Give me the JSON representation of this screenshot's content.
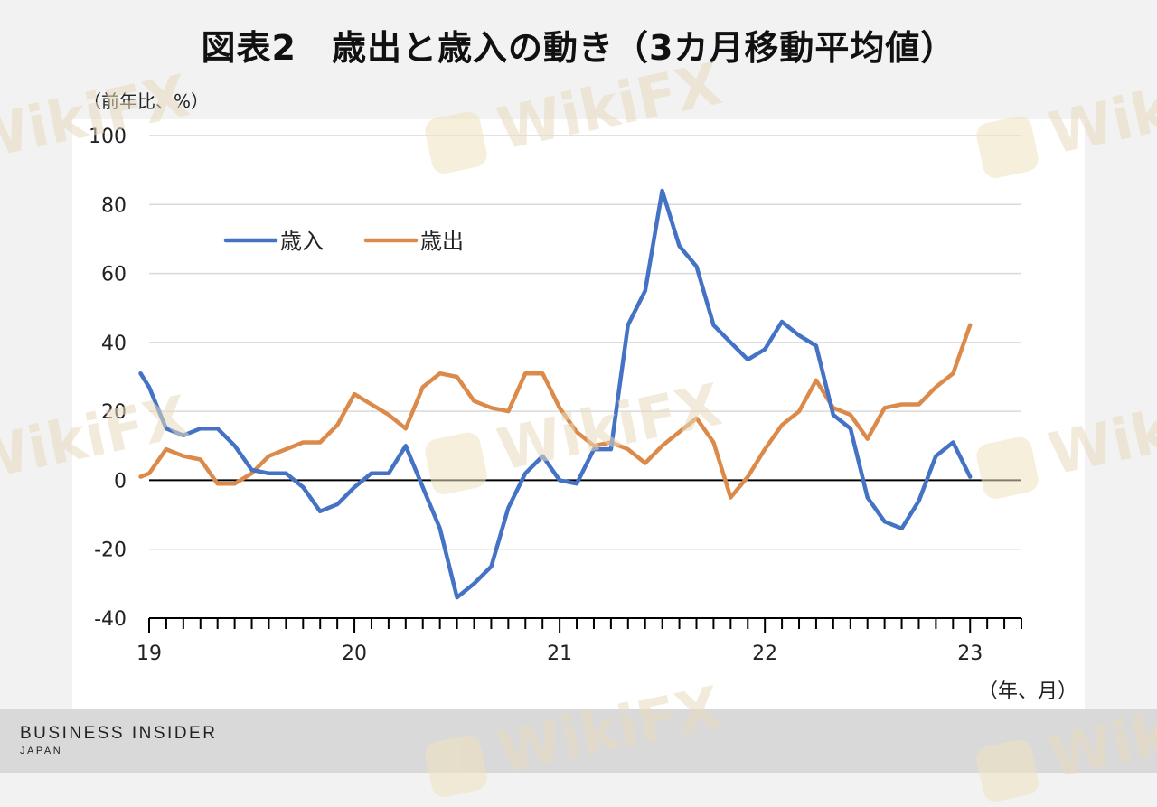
{
  "title": "図表2　歳出と歳入の動き（3カ月移動平均値）",
  "watermark": "WikiFX",
  "brand": {
    "name": "BUSINESS INSIDER",
    "sub": "JAPAN"
  },
  "colors": {
    "revenue": "#4472c4",
    "expenditure": "#dc8a4a",
    "zero_line": "#000000",
    "grid": "#d9d9d9"
  },
  "chart_data": {
    "type": "line",
    "title": "図表2　歳出と歳入の動き（3カ月移動平均値）",
    "ylabel": "（前年比、%）",
    "xlabel": "（年、月）",
    "ylim": [
      -40,
      100
    ],
    "yticks": [
      -40,
      -20,
      0,
      20,
      40,
      60,
      80,
      100
    ],
    "x_range": [
      2019.0,
      2023.25
    ],
    "x_tick_labels": [
      {
        "x": 2019,
        "label": "19"
      },
      {
        "x": 2020,
        "label": "20"
      },
      {
        "x": 2021,
        "label": "21"
      },
      {
        "x": 2022,
        "label": "22"
      },
      {
        "x": 2023,
        "label": "23"
      }
    ],
    "minor_tick_step_months": 1,
    "grid": true,
    "legend": "top-left",
    "series": [
      {
        "name": "歳入",
        "color": "#4472c4",
        "x": [
          2018.958,
          2019.0,
          2019.083,
          2019.167,
          2019.25,
          2019.333,
          2019.417,
          2019.5,
          2019.583,
          2019.667,
          2019.75,
          2019.833,
          2019.917,
          2020.0,
          2020.083,
          2020.167,
          2020.25,
          2020.333,
          2020.417,
          2020.5,
          2020.583,
          2020.667,
          2020.75,
          2020.833,
          2020.917,
          2021.0,
          2021.083,
          2021.167,
          2021.25,
          2021.333,
          2021.417,
          2021.5,
          2021.583,
          2021.667,
          2021.75,
          2021.833,
          2021.917,
          2022.0,
          2022.083,
          2022.167,
          2022.25,
          2022.333,
          2022.417,
          2022.5,
          2022.583,
          2022.667,
          2022.75,
          2022.833,
          2022.917,
          2023.0
        ],
        "values": [
          31,
          27,
          15,
          13,
          15,
          15,
          10,
          3,
          2,
          2,
          -2,
          -9,
          -7,
          -2,
          2,
          2,
          10,
          -2,
          -14,
          -34,
          -30,
          -25,
          -8,
          2,
          7,
          0,
          -1,
          9,
          9,
          45,
          55,
          84,
          68,
          62,
          45,
          40,
          35,
          38,
          46,
          42,
          39,
          19,
          15,
          -5,
          -12,
          -14,
          -6,
          7,
          11,
          1
        ]
      },
      {
        "name": "歳出",
        "color": "#dc8a4a",
        "x": [
          2018.958,
          2019.0,
          2019.083,
          2019.167,
          2019.25,
          2019.333,
          2019.417,
          2019.5,
          2019.583,
          2019.667,
          2019.75,
          2019.833,
          2019.917,
          2020.0,
          2020.083,
          2020.167,
          2020.25,
          2020.333,
          2020.417,
          2020.5,
          2020.583,
          2020.667,
          2020.75,
          2020.833,
          2020.917,
          2021.0,
          2021.083,
          2021.167,
          2021.25,
          2021.333,
          2021.417,
          2021.5,
          2021.583,
          2021.667,
          2021.75,
          2021.833,
          2021.917,
          2022.0,
          2022.083,
          2022.167,
          2022.25,
          2022.333,
          2022.417,
          2022.5,
          2022.583,
          2022.667,
          2022.75,
          2022.833,
          2022.917,
          2023.0
        ],
        "values": [
          1,
          2,
          9,
          7,
          6,
          -1,
          -1,
          2,
          7,
          9,
          11,
          11,
          16,
          25,
          22,
          19,
          15,
          27,
          31,
          30,
          23,
          21,
          20,
          31,
          31,
          21,
          14,
          10,
          11,
          9,
          5,
          10,
          14,
          18,
          11,
          -5,
          1,
          9,
          16,
          20,
          29,
          21,
          19,
          12,
          21,
          22,
          22,
          27,
          31,
          45
        ]
      }
    ]
  }
}
